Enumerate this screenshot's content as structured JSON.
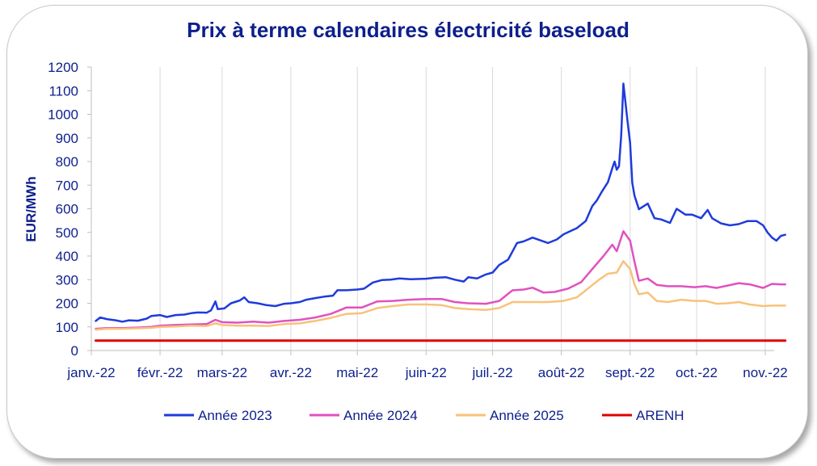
{
  "chart_data": {
    "type": "line",
    "title": "Prix à terme calendaires électricité baseload",
    "ylabel": "EUR/MWh",
    "xlabel": "",
    "ylim": [
      0,
      1200
    ],
    "yticks": [
      0,
      100,
      200,
      300,
      400,
      500,
      600,
      700,
      800,
      900,
      1000,
      1100,
      1200
    ],
    "xlim": [
      "2022-01-01",
      "2022-11-05"
    ],
    "xticks": [
      {
        "date": "2022-01-01",
        "label": "janv.-22"
      },
      {
        "date": "2022-02-01",
        "label": "févr.-22"
      },
      {
        "date": "2022-03-01",
        "label": "mars-22"
      },
      {
        "date": "2022-04-01",
        "label": "avr.-22"
      },
      {
        "date": "2022-05-01",
        "label": "mai-22"
      },
      {
        "date": "2022-06-01",
        "label": "juin-22"
      },
      {
        "date": "2022-07-01",
        "label": "juil.-22"
      },
      {
        "date": "2022-08-01",
        "label": "août-22"
      },
      {
        "date": "2022-09-01",
        "label": "sept.-22"
      },
      {
        "date": "2022-10-01",
        "label": "oct.-22"
      },
      {
        "date": "2022-11-01",
        "label": "nov.-22"
      }
    ],
    "grid": {
      "vertical": true,
      "horizontal": false
    },
    "legend_position": "bottom",
    "series": [
      {
        "name": "Année 2023",
        "color": "#1f3bdc",
        "points": [
          [
            "2022-01-03",
            125
          ],
          [
            "2022-01-05",
            140
          ],
          [
            "2022-01-08",
            133
          ],
          [
            "2022-01-12",
            128
          ],
          [
            "2022-01-15",
            122
          ],
          [
            "2022-01-18",
            128
          ],
          [
            "2022-01-22",
            126
          ],
          [
            "2022-01-26",
            135
          ],
          [
            "2022-01-28",
            146
          ],
          [
            "2022-02-01",
            150
          ],
          [
            "2022-02-04",
            142
          ],
          [
            "2022-02-08",
            150
          ],
          [
            "2022-02-12",
            152
          ],
          [
            "2022-02-15",
            158
          ],
          [
            "2022-02-18",
            161
          ],
          [
            "2022-02-22",
            160
          ],
          [
            "2022-02-24",
            170
          ],
          [
            "2022-02-26",
            208
          ],
          [
            "2022-02-27",
            175
          ],
          [
            "2022-03-02",
            178
          ],
          [
            "2022-03-05",
            200
          ],
          [
            "2022-03-09",
            212
          ],
          [
            "2022-03-11",
            225
          ],
          [
            "2022-03-13",
            205
          ],
          [
            "2022-03-17",
            200
          ],
          [
            "2022-03-21",
            192
          ],
          [
            "2022-03-25",
            188
          ],
          [
            "2022-03-29",
            198
          ],
          [
            "2022-04-01",
            200
          ],
          [
            "2022-04-05",
            205
          ],
          [
            "2022-04-08",
            215
          ],
          [
            "2022-04-12",
            222
          ],
          [
            "2022-04-16",
            228
          ],
          [
            "2022-04-20",
            232
          ],
          [
            "2022-04-22",
            255
          ],
          [
            "2022-04-26",
            255
          ],
          [
            "2022-05-01",
            258
          ],
          [
            "2022-05-04",
            262
          ],
          [
            "2022-05-08",
            288
          ],
          [
            "2022-05-12",
            298
          ],
          [
            "2022-05-16",
            300
          ],
          [
            "2022-05-20",
            305
          ],
          [
            "2022-05-25",
            302
          ],
          [
            "2022-06-01",
            304
          ],
          [
            "2022-06-05",
            308
          ],
          [
            "2022-06-10",
            310
          ],
          [
            "2022-06-14",
            300
          ],
          [
            "2022-06-18",
            292
          ],
          [
            "2022-06-20",
            310
          ],
          [
            "2022-06-24",
            305
          ],
          [
            "2022-06-28",
            322
          ],
          [
            "2022-07-01",
            330
          ],
          [
            "2022-07-04",
            362
          ],
          [
            "2022-07-08",
            385
          ],
          [
            "2022-07-12",
            455
          ],
          [
            "2022-07-15",
            462
          ],
          [
            "2022-07-19",
            478
          ],
          [
            "2022-07-22",
            468
          ],
          [
            "2022-07-26",
            455
          ],
          [
            "2022-07-30",
            470
          ],
          [
            "2022-08-02",
            492
          ],
          [
            "2022-08-05",
            505
          ],
          [
            "2022-08-08",
            518
          ],
          [
            "2022-08-12",
            548
          ],
          [
            "2022-08-15",
            612
          ],
          [
            "2022-08-17",
            635
          ],
          [
            "2022-08-19",
            668
          ],
          [
            "2022-08-22",
            712
          ],
          [
            "2022-08-24",
            772
          ],
          [
            "2022-08-25",
            800
          ],
          [
            "2022-08-26",
            765
          ],
          [
            "2022-08-27",
            780
          ],
          [
            "2022-08-28",
            910
          ],
          [
            "2022-08-29",
            1130
          ],
          [
            "2022-08-31",
            960
          ],
          [
            "2022-09-01",
            880
          ],
          [
            "2022-09-02",
            710
          ],
          [
            "2022-09-03",
            655
          ],
          [
            "2022-09-05",
            598
          ],
          [
            "2022-09-07",
            610
          ],
          [
            "2022-09-09",
            622
          ],
          [
            "2022-09-12",
            560
          ],
          [
            "2022-09-15",
            555
          ],
          [
            "2022-09-19",
            540
          ],
          [
            "2022-09-22",
            600
          ],
          [
            "2022-09-26",
            575
          ],
          [
            "2022-09-29",
            575
          ],
          [
            "2022-10-03",
            560
          ],
          [
            "2022-10-06",
            595
          ],
          [
            "2022-10-08",
            560
          ],
          [
            "2022-10-12",
            538
          ],
          [
            "2022-10-16",
            530
          ],
          [
            "2022-10-20",
            535
          ],
          [
            "2022-10-24",
            548
          ],
          [
            "2022-10-28",
            548
          ],
          [
            "2022-10-31",
            530
          ],
          [
            "2022-11-02",
            500
          ],
          [
            "2022-11-04",
            478
          ],
          [
            "2022-11-06",
            465
          ],
          [
            "2022-11-08",
            485
          ],
          [
            "2022-11-10",
            490
          ]
        ]
      },
      {
        "name": "Année 2024",
        "color": "#e052c0",
        "points": [
          [
            "2022-01-03",
            92
          ],
          [
            "2022-01-08",
            95
          ],
          [
            "2022-01-15",
            95
          ],
          [
            "2022-01-22",
            97
          ],
          [
            "2022-01-28",
            100
          ],
          [
            "2022-02-01",
            105
          ],
          [
            "2022-02-08",
            108
          ],
          [
            "2022-02-15",
            110
          ],
          [
            "2022-02-22",
            112
          ],
          [
            "2022-02-26",
            130
          ],
          [
            "2022-03-01",
            120
          ],
          [
            "2022-03-08",
            118
          ],
          [
            "2022-03-15",
            122
          ],
          [
            "2022-03-22",
            118
          ],
          [
            "2022-03-29",
            125
          ],
          [
            "2022-04-05",
            130
          ],
          [
            "2022-04-12",
            140
          ],
          [
            "2022-04-19",
            155
          ],
          [
            "2022-04-26",
            182
          ],
          [
            "2022-05-03",
            182
          ],
          [
            "2022-05-10",
            208
          ],
          [
            "2022-05-17",
            210
          ],
          [
            "2022-05-24",
            215
          ],
          [
            "2022-06-01",
            218
          ],
          [
            "2022-06-08",
            218
          ],
          [
            "2022-06-14",
            205
          ],
          [
            "2022-06-20",
            200
          ],
          [
            "2022-06-28",
            198
          ],
          [
            "2022-07-04",
            210
          ],
          [
            "2022-07-10",
            255
          ],
          [
            "2022-07-15",
            258
          ],
          [
            "2022-07-19",
            266
          ],
          [
            "2022-07-24",
            245
          ],
          [
            "2022-07-29",
            248
          ],
          [
            "2022-08-04",
            262
          ],
          [
            "2022-08-10",
            290
          ],
          [
            "2022-08-15",
            345
          ],
          [
            "2022-08-20",
            400
          ],
          [
            "2022-08-24",
            448
          ],
          [
            "2022-08-26",
            420
          ],
          [
            "2022-08-29",
            505
          ],
          [
            "2022-09-01",
            465
          ],
          [
            "2022-09-03",
            375
          ],
          [
            "2022-09-05",
            295
          ],
          [
            "2022-09-09",
            305
          ],
          [
            "2022-09-13",
            278
          ],
          [
            "2022-09-18",
            272
          ],
          [
            "2022-09-24",
            272
          ],
          [
            "2022-09-30",
            268
          ],
          [
            "2022-10-05",
            272
          ],
          [
            "2022-10-10",
            265
          ],
          [
            "2022-10-15",
            275
          ],
          [
            "2022-10-20",
            285
          ],
          [
            "2022-10-25",
            280
          ],
          [
            "2022-10-31",
            265
          ],
          [
            "2022-11-04",
            282
          ],
          [
            "2022-11-08",
            280
          ],
          [
            "2022-11-10",
            280
          ]
        ]
      },
      {
        "name": "Année 2025",
        "color": "#f8c27a",
        "points": [
          [
            "2022-01-03",
            88
          ],
          [
            "2022-01-08",
            92
          ],
          [
            "2022-01-15",
            92
          ],
          [
            "2022-01-22",
            94
          ],
          [
            "2022-01-28",
            96
          ],
          [
            "2022-02-01",
            100
          ],
          [
            "2022-02-08",
            102
          ],
          [
            "2022-02-15",
            105
          ],
          [
            "2022-02-22",
            104
          ],
          [
            "2022-02-26",
            115
          ],
          [
            "2022-03-01",
            108
          ],
          [
            "2022-03-08",
            105
          ],
          [
            "2022-03-15",
            105
          ],
          [
            "2022-03-22",
            104
          ],
          [
            "2022-03-29",
            112
          ],
          [
            "2022-04-05",
            115
          ],
          [
            "2022-04-12",
            125
          ],
          [
            "2022-04-19",
            138
          ],
          [
            "2022-04-26",
            155
          ],
          [
            "2022-05-03",
            158
          ],
          [
            "2022-05-10",
            180
          ],
          [
            "2022-05-17",
            188
          ],
          [
            "2022-05-24",
            195
          ],
          [
            "2022-06-01",
            195
          ],
          [
            "2022-06-08",
            192
          ],
          [
            "2022-06-14",
            180
          ],
          [
            "2022-06-20",
            175
          ],
          [
            "2022-06-28",
            172
          ],
          [
            "2022-07-04",
            180
          ],
          [
            "2022-07-10",
            205
          ],
          [
            "2022-07-15",
            205
          ],
          [
            "2022-07-20",
            205
          ],
          [
            "2022-07-26",
            205
          ],
          [
            "2022-08-02",
            210
          ],
          [
            "2022-08-08",
            225
          ],
          [
            "2022-08-13",
            262
          ],
          [
            "2022-08-18",
            300
          ],
          [
            "2022-08-22",
            325
          ],
          [
            "2022-08-26",
            330
          ],
          [
            "2022-08-29",
            378
          ],
          [
            "2022-09-01",
            345
          ],
          [
            "2022-09-03",
            280
          ],
          [
            "2022-09-05",
            238
          ],
          [
            "2022-09-09",
            245
          ],
          [
            "2022-09-13",
            210
          ],
          [
            "2022-09-18",
            205
          ],
          [
            "2022-09-24",
            215
          ],
          [
            "2022-09-30",
            210
          ],
          [
            "2022-10-05",
            210
          ],
          [
            "2022-10-10",
            198
          ],
          [
            "2022-10-15",
            200
          ],
          [
            "2022-10-20",
            205
          ],
          [
            "2022-10-25",
            195
          ],
          [
            "2022-10-31",
            188
          ],
          [
            "2022-11-04",
            190
          ],
          [
            "2022-11-08",
            190
          ],
          [
            "2022-11-10",
            190
          ]
        ]
      },
      {
        "name": "ARENH",
        "color": "#e00000",
        "points": [
          [
            "2022-01-03",
            42
          ],
          [
            "2022-11-10",
            42
          ]
        ]
      }
    ]
  }
}
